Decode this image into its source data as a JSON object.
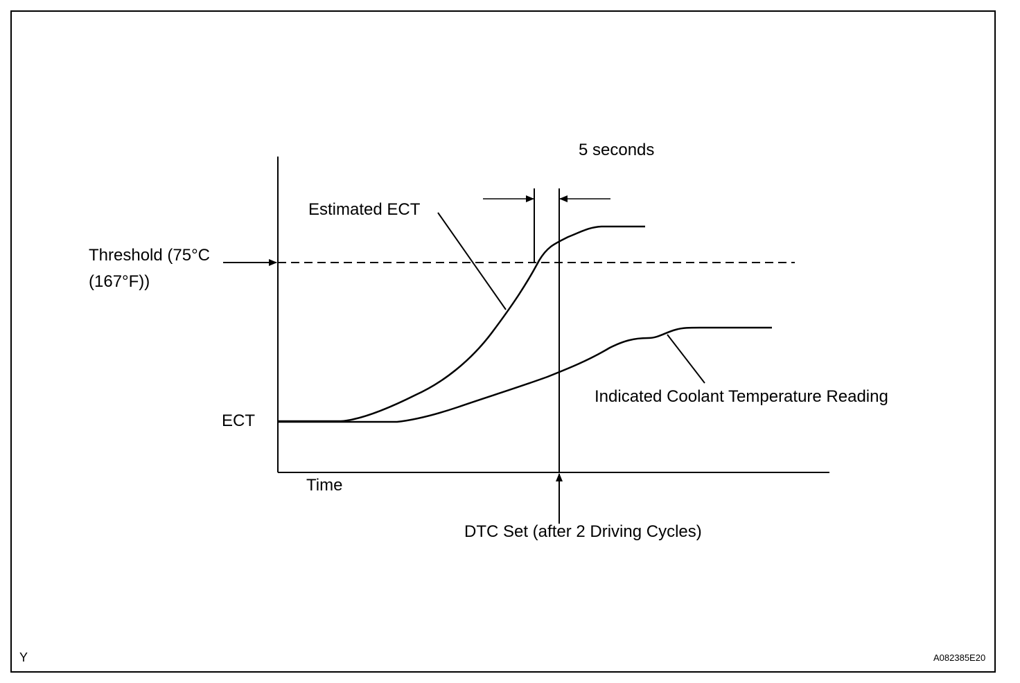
{
  "labels": {
    "five_seconds": "5 seconds",
    "estimated_ect": "Estimated ECT",
    "threshold_line1": "Threshold  (75°C",
    "threshold_line2": "(167°F))",
    "ect": "ECT",
    "time": "Time",
    "indicated_coolant": "Indicated Coolant Temperature Reading",
    "dtc_set": "DTC Set (after 2 Driving Cycles)",
    "corner_left": "Y",
    "figure_code": "A082385E20"
  },
  "colors": {
    "line": "#000000",
    "background": "#ffffff"
  }
}
